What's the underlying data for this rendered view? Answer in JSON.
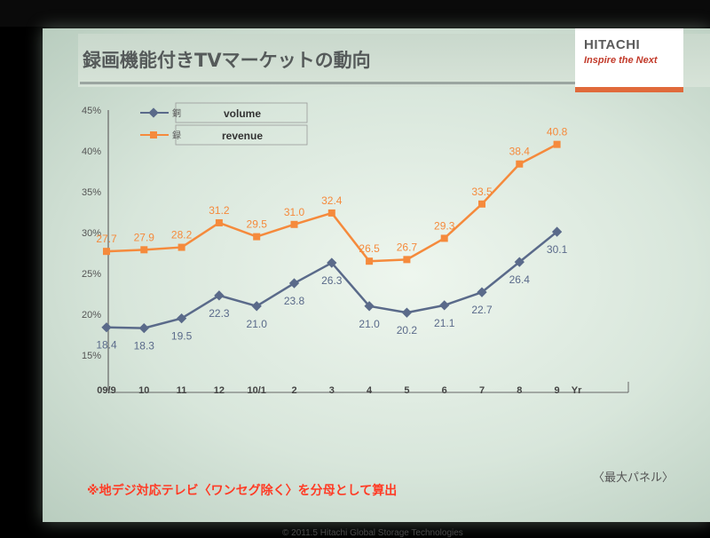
{
  "slide": {
    "title": "録画機能付きTVマーケットの動向",
    "logo_main": "HITACHI",
    "logo_sub": "Inspire the Next",
    "note": "※地デジ対応テレビ〈ワンセグ除く〉を分母として算出",
    "corner_note": "〈最大パネル〉",
    "copyright": "© 2011.5  Hitachi Global Storage Technologies"
  },
  "colors": {
    "volume": "#5a6a8a",
    "revenue": "#f58a3c",
    "axis": "#666666"
  },
  "chart_data": {
    "type": "line",
    "categories": [
      "09/9",
      "10",
      "11",
      "12",
      "10/1",
      "2",
      "3",
      "4",
      "5",
      "6",
      "7",
      "8",
      "9"
    ],
    "x_unit_label": "Yr",
    "yticks": [
      "15%",
      "20%",
      "25%",
      "30%",
      "35%",
      "40%",
      "45%"
    ],
    "ylim": [
      15,
      45
    ],
    "legend_position": "top-left",
    "series": [
      {
        "name": "volume",
        "legend_prefix": "銅",
        "marker": "diamond",
        "values": [
          18.4,
          18.3,
          19.5,
          22.3,
          21.0,
          23.8,
          26.3,
          21.0,
          20.2,
          21.1,
          22.7,
          26.4,
          30.1
        ],
        "labels": [
          "18.4",
          "18.3",
          "19.5",
          "22.3",
          "21.0",
          "23.8",
          "26.3",
          "21.0",
          "20.2",
          "21.1",
          "22.7",
          "26.4",
          "30.1"
        ]
      },
      {
        "name": "revenue",
        "legend_prefix": "録",
        "marker": "square",
        "values": [
          27.7,
          27.9,
          28.2,
          31.2,
          29.5,
          31.0,
          32.4,
          26.5,
          26.7,
          29.3,
          33.5,
          38.4,
          40.8
        ],
        "labels": [
          "27.7",
          "27.9",
          "28.2",
          "31.2",
          "29.5",
          "31.0",
          "32.4",
          "26.5",
          "26.7",
          "29.3",
          "33.5",
          "38.4",
          "40.8"
        ]
      }
    ]
  }
}
